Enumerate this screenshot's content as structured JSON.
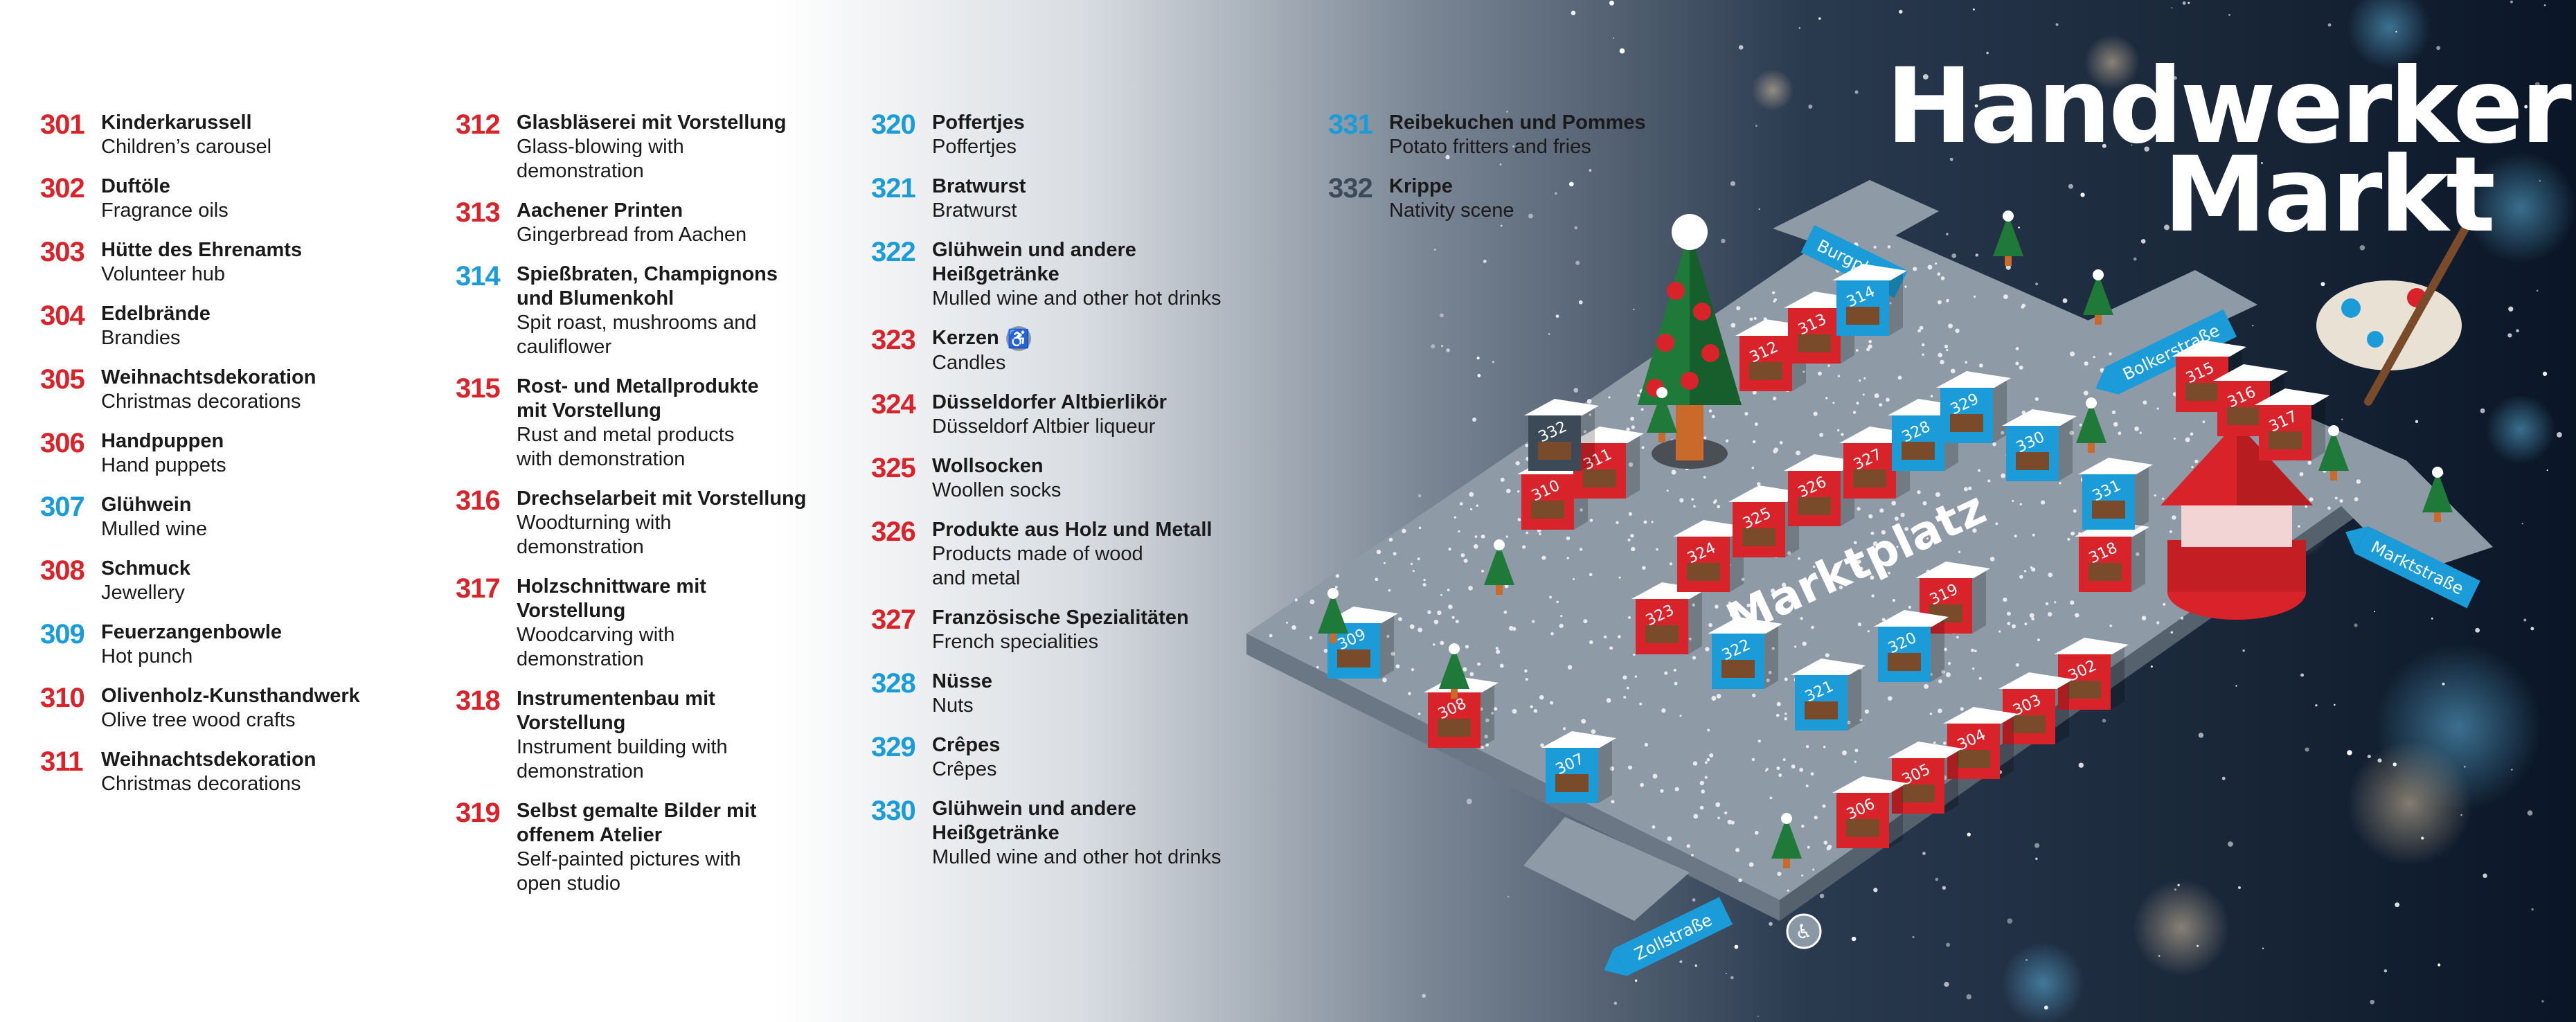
{
  "title": {
    "line1": "Handwerker",
    "line2": "Markt"
  },
  "legend": {
    "col1": [
      {
        "num": "301",
        "de": "Kinderkarussell",
        "en": "Children’s carousel",
        "color": "red"
      },
      {
        "num": "302",
        "de": "Duftöle",
        "en": "Fragrance oils",
        "color": "red"
      },
      {
        "num": "303",
        "de": "Hütte des Ehrenamts",
        "en": "Volunteer hub",
        "color": "red"
      },
      {
        "num": "304",
        "de": "Edelbrände",
        "en": "Brandies",
        "color": "red"
      },
      {
        "num": "305",
        "de": "Weihnachtsdekoration",
        "en": "Christmas decorations",
        "color": "red"
      },
      {
        "num": "306",
        "de": "Handpuppen",
        "en": "Hand puppets",
        "color": "red"
      },
      {
        "num": "307",
        "de": "Glühwein",
        "en": "Mulled wine",
        "color": "blue"
      },
      {
        "num": "308",
        "de": "Schmuck",
        "en": "Jewellery",
        "color": "red"
      },
      {
        "num": "309",
        "de": "Feuerzangenbowle",
        "en": "Hot punch",
        "color": "blue"
      },
      {
        "num": "310",
        "de": "Olivenholz-Kunsthandwerk",
        "en": "Olive tree wood crafts",
        "color": "red"
      },
      {
        "num": "311",
        "de": "Weihnachtsdekoration",
        "en": "Christmas decorations",
        "color": "red"
      }
    ],
    "col2": [
      {
        "num": "312",
        "de": "Glasbläserei mit Vorstellung",
        "en": "Glass-blowing with\ndemonstration",
        "color": "red"
      },
      {
        "num": "313",
        "de": "Aachener Printen",
        "en": "Gingerbread from Aachen",
        "color": "red"
      },
      {
        "num": "314",
        "de": "Spießbraten, Champignons\nund Blumenkohl",
        "en": "Spit roast, mushrooms and\ncauliflower",
        "color": "blue"
      },
      {
        "num": "315",
        "de": "Rost- und Metallprodukte\nmit Vorstellung",
        "en": "Rust and metal products\nwith demonstration",
        "color": "red"
      },
      {
        "num": "316",
        "de": "Drechselarbeit mit Vorstellung",
        "en": "Woodturning with\ndemonstration",
        "color": "red"
      },
      {
        "num": "317",
        "de": "Holzschnittware mit\nVorstellung",
        "en": "Woodcarving with\ndemonstration",
        "color": "red"
      },
      {
        "num": "318",
        "de": "Instrumentenbau mit\nVorstellung",
        "en": "Instrument building with\ndemonstration",
        "color": "red"
      },
      {
        "num": "319",
        "de": "Selbst gemalte Bilder mit\noffenem Atelier",
        "en": "Self-painted pictures with\nopen studio",
        "color": "red"
      }
    ],
    "col3": [
      {
        "num": "320",
        "de": "Poffertjes",
        "en": "Poffertjes",
        "color": "blue"
      },
      {
        "num": "321",
        "de": "Bratwurst",
        "en": "Bratwurst",
        "color": "blue"
      },
      {
        "num": "322",
        "de": "Glühwein und andere\nHeißgetränke",
        "en": "Mulled wine and other hot drinks",
        "color": "blue"
      },
      {
        "num": "323",
        "de": "Kerzen",
        "en": "Candles",
        "color": "red",
        "accessible": true
      },
      {
        "num": "324",
        "de": "Düsseldorfer Altbierlikör",
        "en": "Düsseldorf Altbier liqueur",
        "color": "red"
      },
      {
        "num": "325",
        "de": "Wollsocken",
        "en": "Woollen socks",
        "color": "red"
      },
      {
        "num": "326",
        "de": "Produkte aus Holz und Metall",
        "en": "Products made of wood\nand metal",
        "color": "red"
      },
      {
        "num": "327",
        "de": "Französische Spezialitäten",
        "en": "French specialities",
        "color": "red"
      },
      {
        "num": "328",
        "de": "Nüsse",
        "en": "Nuts",
        "color": "blue"
      },
      {
        "num": "329",
        "de": "Crêpes",
        "en": "Crêpes",
        "color": "blue"
      },
      {
        "num": "330",
        "de": "Glühwein und andere\nHeißgetränke",
        "en": "Mulled wine and other hot drinks",
        "color": "blue"
      }
    ],
    "col4": [
      {
        "num": "331",
        "de": "Reibekuchen und Pommes",
        "en": "Potato fritters and fries",
        "color": "blue"
      },
      {
        "num": "332",
        "de": "Krippe",
        "en": "Nativity scene",
        "color": "grey"
      }
    ]
  },
  "streets": {
    "burgplatz": "Burgplatz",
    "bolkerstrasse": "Bolkerstraße",
    "marktstrasse": "Marktstraße",
    "zollstrasse": "Zollstraße"
  },
  "square_label": "Marktplatz",
  "wheelchair_symbol": "♿",
  "map_icons": [
    "christmas-tree-icon",
    "carousel-icon",
    "palette-icon",
    "wheelchair-icon"
  ],
  "colors": {
    "red": "#d8232a",
    "blue": "#1b9bd7",
    "grey": "#3c4a57",
    "night": "#0d1b2e",
    "ground": "#8e9aa6"
  }
}
